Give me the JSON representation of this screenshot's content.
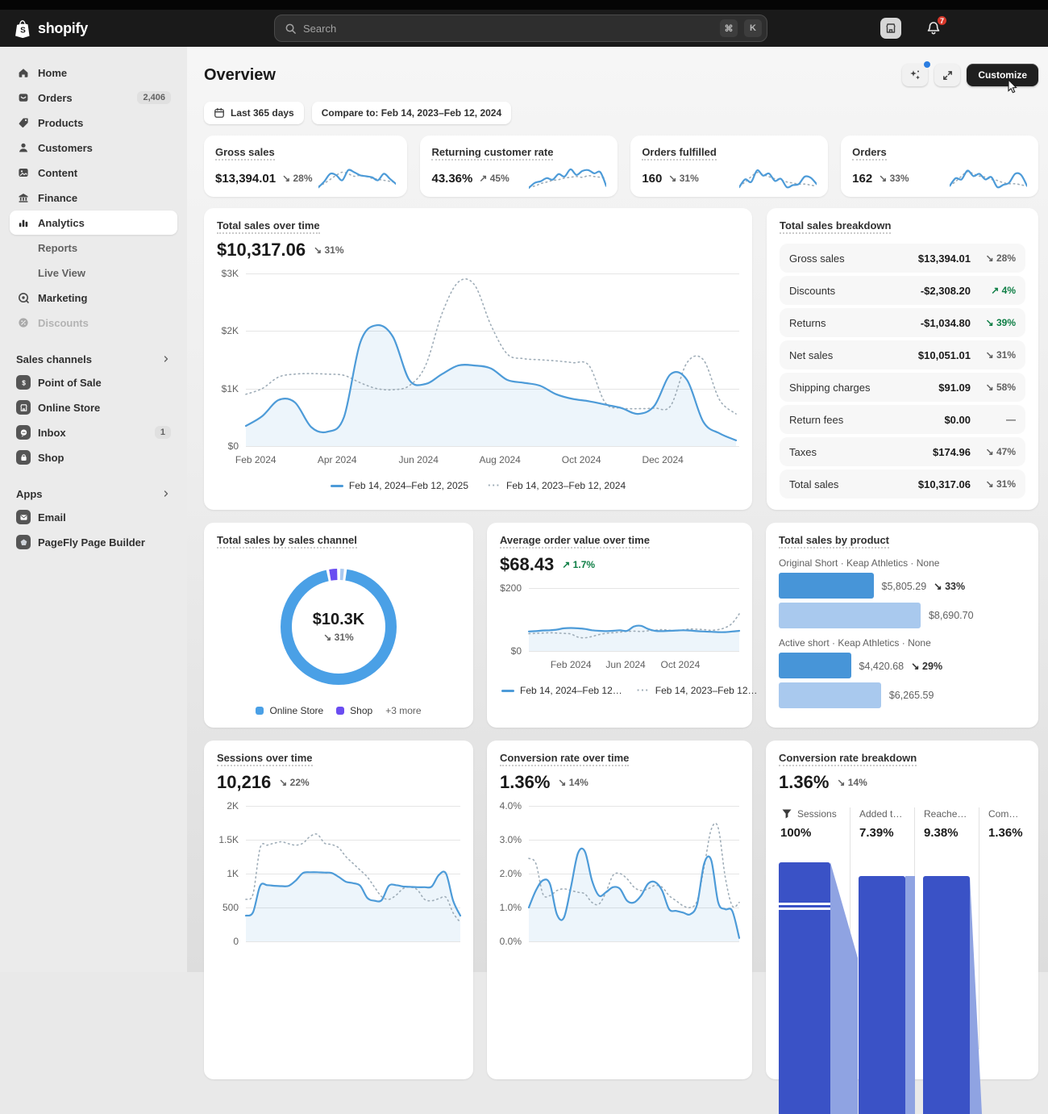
{
  "topbar": {
    "brand": "shopify",
    "search_placeholder": "Search",
    "shortcut_cmd": "⌘",
    "shortcut_key": "K",
    "notification_count": "7"
  },
  "header": {
    "title": "Overview",
    "customize_label": "Customize"
  },
  "filters": {
    "date_range": "Last 365 days",
    "compare": "Compare to: Feb 14, 2023–Feb 12, 2024"
  },
  "sidebar": {
    "main": [
      {
        "label": "Home",
        "icon": "home"
      },
      {
        "label": "Orders",
        "icon": "orders",
        "badge": "2,406"
      },
      {
        "label": "Products",
        "icon": "products"
      },
      {
        "label": "Customers",
        "icon": "customers"
      },
      {
        "label": "Content",
        "icon": "content"
      },
      {
        "label": "Finance",
        "icon": "finance"
      },
      {
        "label": "Analytics",
        "icon": "analytics",
        "active": true
      },
      {
        "label": "Reports",
        "sub": true
      },
      {
        "label": "Live View",
        "sub": true
      },
      {
        "label": "Marketing",
        "icon": "marketing"
      },
      {
        "label": "Discounts",
        "icon": "discounts",
        "disabled": true
      }
    ],
    "sales_channels": {
      "title": "Sales channels",
      "items": [
        {
          "label": "Point of Sale",
          "icon": "point-of-sale"
        },
        {
          "label": "Online Store",
          "icon": "online-store"
        },
        {
          "label": "Inbox",
          "icon": "inbox",
          "badge": "1"
        },
        {
          "label": "Shop",
          "icon": "shop"
        }
      ]
    },
    "apps": {
      "title": "Apps",
      "items": [
        {
          "label": "Email",
          "icon": "email"
        },
        {
          "label": "PageFly Page Builder",
          "icon": "pagefly"
        }
      ]
    }
  },
  "kpi_cards": [
    {
      "title": "Gross sales",
      "value": "$13,394.01",
      "delta": "28%",
      "dir": "down",
      "tone": "neutral",
      "spark": {
        "current": [
          28,
          40,
          55,
          52,
          42,
          62,
          58,
          52,
          50,
          48,
          42,
          55,
          45,
          35
        ],
        "previous": [
          30,
          36,
          44,
          52,
          58,
          55,
          50,
          52,
          50,
          46,
          44,
          42,
          40,
          38
        ]
      }
    },
    {
      "title": "Returning customer rate",
      "value": "43.36%",
      "delta": "45%",
      "dir": "up",
      "tone": "neutral",
      "spark": {
        "current": [
          15,
          28,
          32,
          40,
          36,
          50,
          44,
          62,
          48,
          58,
          60,
          52,
          55,
          20
        ],
        "previous": [
          18,
          20,
          26,
          30,
          34,
          36,
          40,
          42,
          44,
          42,
          46,
          44,
          42,
          40
        ]
      }
    },
    {
      "title": "Orders fulfilled",
      "value": "160",
      "delta": "31%",
      "dir": "down",
      "tone": "neutral",
      "spark": {
        "current": [
          30,
          45,
          40,
          62,
          52,
          56,
          42,
          46,
          30,
          34,
          36,
          50,
          48,
          36
        ],
        "previous": [
          32,
          40,
          50,
          58,
          54,
          50,
          46,
          44,
          40,
          38,
          36,
          36,
          34,
          32
        ]
      }
    },
    {
      "title": "Orders",
      "value": "162",
      "delta": "33%",
      "dir": "down",
      "tone": "neutral",
      "spark": {
        "current": [
          30,
          44,
          42,
          58,
          48,
          52,
          42,
          46,
          28,
          32,
          36,
          52,
          50,
          30
        ],
        "previous": [
          30,
          38,
          48,
          56,
          52,
          48,
          46,
          42,
          40,
          36,
          34,
          34,
          32,
          30
        ]
      }
    }
  ],
  "chart_data": [
    {
      "id": "total_sales",
      "type": "line",
      "title": "Total sales over time",
      "value": "$10,317.06",
      "delta": "31%",
      "dir": "down",
      "tone": "neutral",
      "ylim": [
        0,
        3000
      ],
      "yticks": [
        {
          "label": "$3K",
          "v": 3000
        },
        {
          "label": "$2K",
          "v": 2000
        },
        {
          "label": "$1K",
          "v": 1000
        },
        {
          "label": "$0",
          "v": 0
        }
      ],
      "x_labels": [
        "Feb 2024",
        "Apr 2024",
        "Jun 2024",
        "Aug 2024",
        "Oct 2024",
        "Dec 2024"
      ],
      "series": [
        {
          "name": "Feb 14, 2024–Feb 12, 2025",
          "style": "solid",
          "values": [
            350,
            520,
            800,
            760,
            330,
            250,
            500,
            1800,
            2100,
            1900,
            1150,
            1080,
            1250,
            1400,
            1400,
            1350,
            1150,
            1100,
            1050,
            900,
            820,
            780,
            720,
            660,
            560,
            700,
            1250,
            1150,
            420,
            220,
            100
          ]
        },
        {
          "name": "Feb 14, 2023–Feb 12, 2024",
          "style": "dotted",
          "values": [
            900,
            1000,
            1200,
            1250,
            1260,
            1250,
            1230,
            1100,
            1000,
            980,
            1050,
            1400,
            2300,
            2850,
            2800,
            2100,
            1600,
            1520,
            1500,
            1480,
            1450,
            1400,
            750,
            660,
            650,
            660,
            700,
            1450,
            1500,
            800,
            560
          ]
        }
      ],
      "legend": [
        {
          "label": "Feb 14, 2024–Feb 12, 2025",
          "style": "solid"
        },
        {
          "label": "Feb 14, 2023–Feb 12, 2024",
          "style": "dotted"
        }
      ]
    },
    {
      "id": "aov",
      "type": "line",
      "title": "Average order value over time",
      "value": "$68.43",
      "delta": "1.7%",
      "dir": "up",
      "tone": "positive",
      "ylim": [
        0,
        200
      ],
      "yticks": [
        {
          "label": "$200",
          "v": 200
        },
        {
          "label": "$0",
          "v": 0
        }
      ],
      "x_labels": [
        "Feb 2024",
        "Jun 2024",
        "Oct 2024"
      ],
      "series": [
        {
          "name": "Feb 14, 2024–Feb 12…",
          "style": "solid",
          "values": [
            62,
            63,
            65,
            66,
            68,
            72,
            73,
            72,
            70,
            66,
            64,
            63,
            64,
            66,
            64,
            78,
            80,
            70,
            64,
            63,
            64,
            65,
            66,
            65,
            63,
            62,
            61,
            60,
            60,
            62,
            64
          ]
        },
        {
          "name": "Feb 14, 2023–Feb 12…",
          "style": "dotted",
          "values": [
            55,
            56,
            57,
            58,
            57,
            56,
            54,
            44,
            42,
            46,
            52,
            56,
            58,
            60,
            62,
            63,
            62,
            64,
            66,
            68,
            66,
            65,
            67,
            70,
            69,
            68,
            66,
            68,
            74,
            88,
            118
          ]
        }
      ],
      "legend": [
        {
          "label": "Feb 14, 2024–Feb 12…",
          "style": "solid"
        },
        {
          "label": "Feb 14, 2023–Feb 12…",
          "style": "dotted"
        }
      ]
    },
    {
      "id": "sessions",
      "type": "line",
      "title": "Sessions over time",
      "value": "10,216",
      "delta": "22%",
      "dir": "down",
      "tone": "neutral",
      "ylim": [
        0,
        2000
      ],
      "yticks": [
        {
          "label": "2K",
          "v": 2000
        },
        {
          "label": "1.5K",
          "v": 1500
        },
        {
          "label": "1K",
          "v": 1000
        },
        {
          "label": "500",
          "v": 500
        },
        {
          "label": "0",
          "v": 0
        }
      ],
      "x_labels": [],
      "series": [
        {
          "name": "current",
          "style": "solid",
          "values": [
            380,
            430,
            820,
            830,
            820,
            815,
            820,
            900,
            1010,
            1020,
            1020,
            1015,
            1010,
            950,
            880,
            860,
            820,
            640,
            600,
            610,
            820,
            830,
            810,
            805,
            800,
            800,
            810,
            980,
            1000,
            600,
            380
          ]
        },
        {
          "name": "previous",
          "style": "dotted",
          "values": [
            620,
            700,
            1380,
            1420,
            1450,
            1470,
            1440,
            1420,
            1450,
            1550,
            1580,
            1450,
            1430,
            1380,
            1250,
            1150,
            1050,
            950,
            800,
            660,
            620,
            680,
            780,
            800,
            760,
            620,
            600,
            630,
            650,
            420,
            280
          ]
        }
      ]
    },
    {
      "id": "conversion",
      "type": "line",
      "title": "Conversion rate over time",
      "value": "1.36%",
      "delta": "14%",
      "dir": "down",
      "tone": "neutral",
      "ylim": [
        0,
        4
      ],
      "yticks": [
        {
          "label": "4.0%",
          "v": 4
        },
        {
          "label": "3.0%",
          "v": 3
        },
        {
          "label": "2.0%",
          "v": 2
        },
        {
          "label": "1.0%",
          "v": 1
        },
        {
          "label": "0.0%",
          "v": 0
        }
      ],
      "x_labels": [],
      "series": [
        {
          "name": "current",
          "style": "solid",
          "values": [
            1.0,
            1.5,
            1.8,
            1.7,
            0.8,
            0.7,
            1.6,
            2.6,
            2.65,
            1.8,
            1.35,
            1.45,
            1.6,
            1.55,
            1.2,
            1.15,
            1.35,
            1.7,
            1.75,
            1.5,
            0.95,
            0.9,
            0.85,
            0.8,
            1.1,
            2.3,
            2.4,
            1.15,
            0.95,
            0.9,
            0.1
          ]
        },
        {
          "name": "previous",
          "style": "dotted",
          "values": [
            2.45,
            2.3,
            1.4,
            1.35,
            1.5,
            1.55,
            1.5,
            1.45,
            1.4,
            1.15,
            1.1,
            1.45,
            1.95,
            2.0,
            1.85,
            1.6,
            1.5,
            1.55,
            1.65,
            1.6,
            1.35,
            1.2,
            1.05,
            1.0,
            1.2,
            2.2,
            3.3,
            3.35,
            1.9,
            1.05,
            1.15
          ]
        }
      ]
    },
    {
      "id": "channel_donut",
      "type": "pie",
      "title": "Total sales by sales channel",
      "center_value": "$10.3K",
      "delta": "31%",
      "dir": "down",
      "tone": "neutral",
      "segments": [
        {
          "label": "Other",
          "value": 1.0,
          "color": "#aac9f0"
        },
        {
          "label": "Online Store",
          "value": 94.4,
          "color": "#4aa0e6"
        },
        {
          "label": "Shop",
          "value": 2.2,
          "color": "#6a4df1"
        }
      ],
      "legend": [
        {
          "label": "Online Store",
          "color": "#4aa0e6"
        },
        {
          "label": "Shop",
          "color": "#6a4df1"
        }
      ],
      "more_label": "+3 more"
    },
    {
      "id": "products",
      "type": "bar",
      "title": "Total sales by product",
      "max_value": 8690.7,
      "items": [
        {
          "name": "Original Short · Keap Athletics · None",
          "current": 5805.29,
          "current_label": "$5,805.29",
          "delta": "33%",
          "dir": "down",
          "previous": 8690.7,
          "previous_label": "$8,690.70"
        },
        {
          "name": "Active short · Keap Athletics · None",
          "current": 4420.68,
          "current_label": "$4,420.68",
          "delta": "29%",
          "dir": "down",
          "previous": 6265.59,
          "previous_label": "$6,265.59"
        }
      ]
    },
    {
      "id": "funnel",
      "type": "bar",
      "title": "Conversion rate breakdown",
      "value": "1.36%",
      "delta": "14%",
      "dir": "down",
      "tone": "neutral",
      "steps": [
        {
          "label": "Sessions",
          "value": "100%",
          "icon": "funnel"
        },
        {
          "label": "Added t…",
          "value": "7.39%"
        },
        {
          "label": "Reache…",
          "value": "9.38%"
        },
        {
          "label": "Com…",
          "value": "1.36%"
        }
      ]
    }
  ],
  "breakdown": {
    "title": "Total sales breakdown",
    "rows": [
      {
        "label": "Gross sales",
        "value": "$13,394.01",
        "delta": "28%",
        "dir": "down",
        "tone": "neutral"
      },
      {
        "label": "Discounts",
        "value": "-$2,308.20",
        "delta": "4%",
        "dir": "up",
        "tone": "positive"
      },
      {
        "label": "Returns",
        "value": "-$1,034.80",
        "delta": "39%",
        "dir": "down",
        "tone": "positive"
      },
      {
        "label": "Net sales",
        "value": "$10,051.01",
        "delta": "31%",
        "dir": "down",
        "tone": "neutral"
      },
      {
        "label": "Shipping charges",
        "value": "$91.09",
        "delta": "58%",
        "dir": "down",
        "tone": "neutral"
      },
      {
        "label": "Return fees",
        "value": "$0.00",
        "delta": "—",
        "dir": "none",
        "tone": "neutral"
      },
      {
        "label": "Taxes",
        "value": "$174.96",
        "delta": "47%",
        "dir": "down",
        "tone": "neutral"
      },
      {
        "label": "Total sales",
        "value": "$10,317.06",
        "delta": "31%",
        "dir": "down",
        "tone": "neutral"
      }
    ]
  },
  "colors": {
    "line_current": "#4d9bd8",
    "line_previous": "#9fadb8",
    "area": "rgba(77,155,216,0.10)",
    "funnel_bar": "#3a52c6",
    "funnel_connector": "#8fa3e2",
    "positive": "#0e7e45",
    "neutral_delta": "#616161"
  }
}
